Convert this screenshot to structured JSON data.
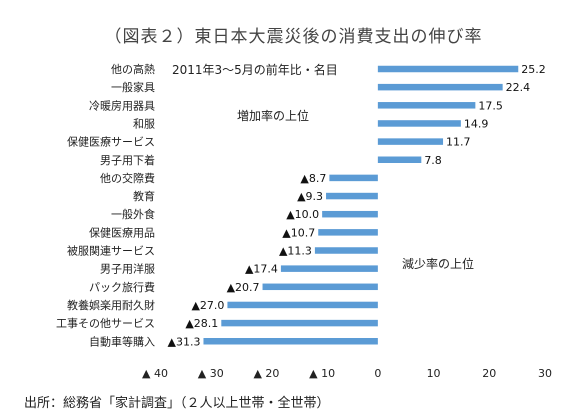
{
  "page": {
    "title": "（図表２）東日本大震災後の消費支出の伸び率",
    "source": "出所：総務省「家計調査」（２人以上世帯・全世帯）"
  },
  "chart_data": {
    "type": "bar",
    "orientation": "horizontal",
    "categories": [
      "他の高熱",
      "一般家具",
      "冷暖房用器具",
      "和服",
      "保健医療サービス",
      "男子用下着",
      "他の交際費",
      "教育",
      "一般外食",
      "保健医療用品",
      "被服関連サービス",
      "男子用洋服",
      "パック旅行費",
      "教養娯楽用耐久財",
      "工事その他サービス",
      "自動車等購入"
    ],
    "values": [
      25.2,
      22.4,
      17.5,
      14.9,
      11.7,
      7.8,
      -8.7,
      -9.3,
      -10.0,
      -10.7,
      -11.3,
      -17.4,
      -20.7,
      -27.0,
      -28.1,
      -31.3
    ],
    "value_labels": [
      "25.2",
      "22.4",
      "17.5",
      "14.9",
      "11.7",
      "7.8",
      "▲8.7",
      "▲9.3",
      "▲10.0",
      "▲10.7",
      "▲11.3",
      "▲17.4",
      "▲20.7",
      "▲27.0",
      "▲28.1",
      "▲31.3"
    ],
    "xlim": [
      -40,
      30
    ],
    "xticks": [
      -40,
      -30,
      -20,
      -10,
      0,
      10,
      20,
      30
    ],
    "xtick_labels": [
      "▲ 40",
      "▲ 30",
      "▲ 20",
      "▲ 10",
      "0",
      "10",
      "20",
      "30"
    ],
    "bar_color": "#5b9bd5",
    "grid": false,
    "annotations": {
      "period": "2011年3～5月の前年比・名目",
      "increase": "増加率の上位",
      "decrease": "減少率の上位"
    }
  }
}
